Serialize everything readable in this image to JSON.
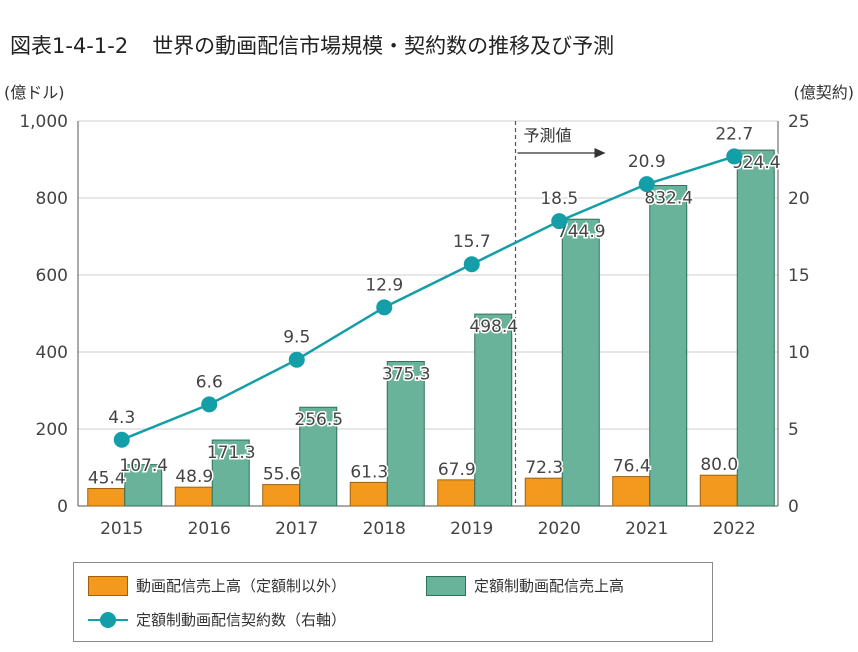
{
  "title": {
    "label": "図表1-4-1-2",
    "text": "世界の動画配信市場規模・契約数の推移及び予測"
  },
  "chart_data": {
    "type": "bar",
    "categories": [
      "2015",
      "2016",
      "2017",
      "2018",
      "2019",
      "2020",
      "2021",
      "2022"
    ],
    "series": [
      {
        "name": "動画配信売上高（定額制以外）",
        "type": "bar",
        "axis": "left",
        "color": "#f39a1e",
        "values": [
          45.4,
          48.9,
          55.6,
          61.3,
          67.9,
          72.3,
          76.4,
          80.0
        ],
        "labels": [
          "45.4",
          "48.9",
          "55.6",
          "61.3",
          "67.9",
          "72.3",
          "76.4",
          "80.0"
        ]
      },
      {
        "name": "定額制動画配信売上高",
        "type": "bar",
        "axis": "left",
        "color": "#6ab39b",
        "values": [
          107.4,
          171.3,
          256.5,
          375.3,
          498.4,
          744.9,
          832.4,
          924.4
        ],
        "labels": [
          "107.4",
          "171.3",
          "256.5",
          "375.3",
          "498.4",
          "744.9",
          "832.4",
          "924.4"
        ]
      },
      {
        "name": "定額制動画配信契約数（右軸）",
        "type": "line",
        "axis": "right",
        "color": "#139ea8",
        "values": [
          4.3,
          6.6,
          9.5,
          12.9,
          15.7,
          18.5,
          20.9,
          22.7
        ],
        "labels": [
          "4.3",
          "6.6",
          "9.5",
          "12.9",
          "15.7",
          "18.5",
          "20.9",
          "22.7"
        ]
      }
    ],
    "y_left": {
      "unit_label": "(億ドル)",
      "ylim": [
        0,
        1000
      ],
      "ticks": [
        "0",
        "200",
        "400",
        "600",
        "800",
        "1,000"
      ]
    },
    "y_right": {
      "unit_label": "(億契約)",
      "ylim": [
        0,
        25
      ],
      "ticks": [
        "0",
        "5",
        "10",
        "15",
        "20",
        "25"
      ]
    },
    "forecast": {
      "label": "予測値",
      "from_category": "2020"
    },
    "grid": true,
    "legend_position": "bottom"
  }
}
